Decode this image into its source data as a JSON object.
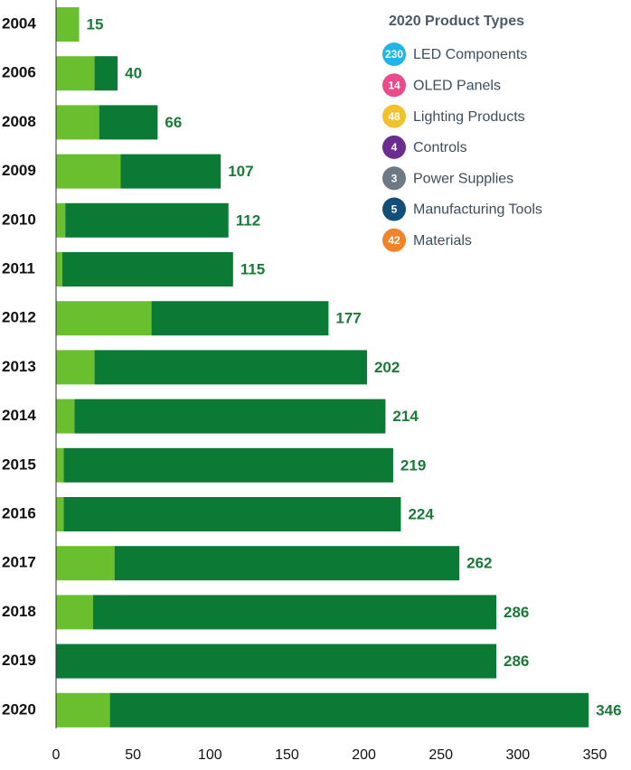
{
  "chart_data": {
    "type": "stacked-barh",
    "categories": [
      "2004",
      "2006",
      "2008",
      "2009",
      "2010",
      "2011",
      "2012",
      "2013",
      "2014",
      "2015",
      "2016",
      "2017",
      "2018",
      "2019",
      "2020"
    ],
    "series": [
      {
        "color": "#6abf2e",
        "values": [
          15,
          25,
          28,
          42,
          6,
          4,
          62,
          25,
          12,
          5,
          5,
          38,
          24,
          0,
          35
        ]
      },
      {
        "color": "#0b7a35",
        "values": [
          0,
          15,
          38,
          65,
          106,
          111,
          115,
          177,
          202,
          214,
          219,
          224,
          262,
          286,
          311
        ]
      }
    ],
    "totals": [
      15,
      40,
      66,
      107,
      112,
      115,
      177,
      202,
      214,
      219,
      224,
      262,
      286,
      286,
      346
    ],
    "xlim": [
      0,
      350
    ],
    "xticks": [
      0,
      50,
      100,
      150,
      200,
      250,
      300,
      350
    ],
    "grid": false,
    "legend": {
      "title": "2020 Product Types",
      "items": [
        {
          "value": 230,
          "label": "LED Components",
          "color": "#1fb5e6"
        },
        {
          "value": 14,
          "label": "OLED Panels",
          "color": "#ec4b8b"
        },
        {
          "value": 48,
          "label": "Lighting Products",
          "color": "#f2c12e"
        },
        {
          "value": 4,
          "label": "Controls",
          "color": "#6b2d8f"
        },
        {
          "value": 3,
          "label": "Power Supplies",
          "color": "#6d7a85"
        },
        {
          "value": 5,
          "label": "Manufacturing Tools",
          "color": "#124e78"
        },
        {
          "value": 42,
          "label": "Materials",
          "color": "#f0842c"
        }
      ]
    }
  }
}
